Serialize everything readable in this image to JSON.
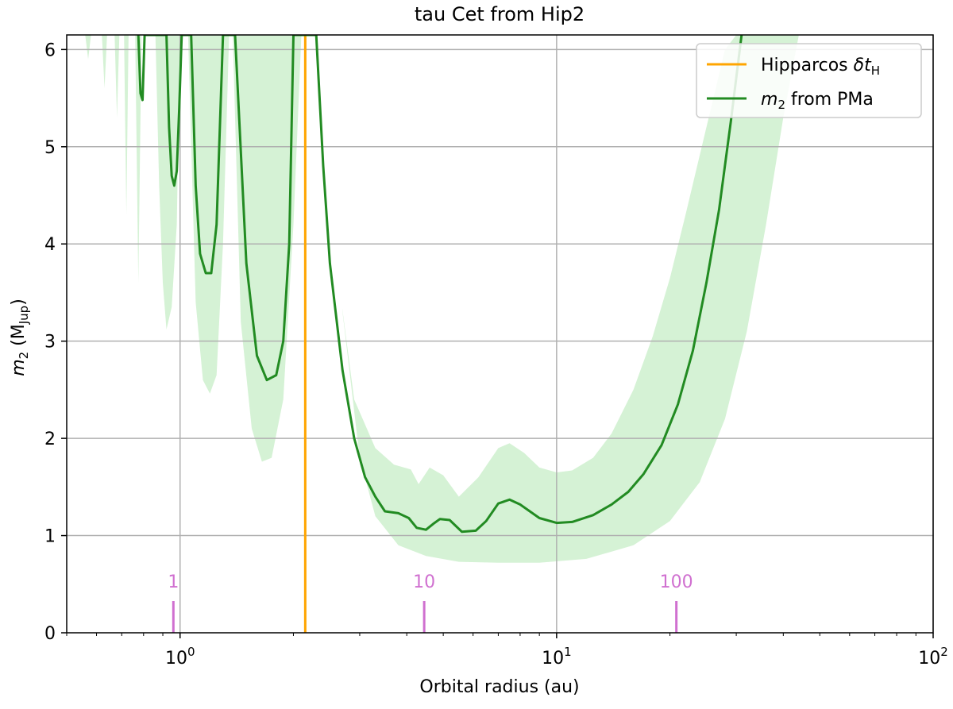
{
  "chart_data": {
    "type": "line",
    "title": "tau Cet from Hip2",
    "xlabel": "Orbital radius (au)",
    "ylabel_main": "m",
    "ylabel_sub": "2",
    "ylabel_rest": " (M",
    "ylabel_unit_sub": "Jup",
    "ylabel_close": ")",
    "xscale": "log",
    "xlim": [
      0.5,
      100
    ],
    "ylim": [
      0,
      6.15
    ],
    "grid": true,
    "x_ticks": [
      {
        "value": 1,
        "base": "10",
        "exp": "0"
      },
      {
        "value": 10,
        "base": "10",
        "exp": "1"
      },
      {
        "value": 100,
        "base": "10",
        "exp": "2"
      }
    ],
    "y_ticks": [
      "0",
      "1",
      "2",
      "3",
      "4",
      "5",
      "6"
    ],
    "legend": {
      "placement": "top-right",
      "entries": [
        {
          "label_main": "Hipparcos ",
          "label_symbol": "δt",
          "label_sub": "H",
          "color": "#ffa500"
        },
        {
          "label_main": "m",
          "label_sub": "2",
          "label_rest": " from PMa",
          "color": "#228b22"
        }
      ]
    },
    "hipparcos_line": {
      "x": 2.15,
      "color": "#ffa500"
    },
    "series": [
      {
        "name": "m2 from PMa",
        "color": "#228b22",
        "points": [
          [
            0.775,
            6.15
          ],
          [
            0.785,
            5.55
          ],
          [
            0.795,
            5.48
          ],
          [
            0.805,
            6.15
          ],
          [
            0.92,
            6.15
          ],
          [
            0.935,
            5.2
          ],
          [
            0.95,
            4.7
          ],
          [
            0.965,
            4.6
          ],
          [
            0.98,
            4.75
          ],
          [
            0.995,
            5.4
          ],
          [
            1.01,
            6.15
          ],
          [
            1.07,
            6.15
          ],
          [
            1.1,
            4.6
          ],
          [
            1.13,
            3.9
          ],
          [
            1.17,
            3.7
          ],
          [
            1.21,
            3.7
          ],
          [
            1.25,
            4.2
          ],
          [
            1.3,
            6.15
          ],
          [
            1.4,
            6.15
          ],
          [
            1.5,
            3.8
          ],
          [
            1.6,
            2.85
          ],
          [
            1.7,
            2.6
          ],
          [
            1.8,
            2.65
          ],
          [
            1.88,
            3.0
          ],
          [
            1.95,
            4.0
          ],
          [
            2.0,
            6.15
          ],
          [
            2.3,
            6.15
          ],
          [
            2.4,
            4.8
          ],
          [
            2.5,
            3.8
          ],
          [
            2.7,
            2.7
          ],
          [
            2.9,
            2.0
          ],
          [
            3.1,
            1.6
          ],
          [
            3.3,
            1.4
          ],
          [
            3.5,
            1.25
          ],
          [
            3.8,
            1.23
          ],
          [
            4.05,
            1.18
          ],
          [
            4.25,
            1.08
          ],
          [
            4.5,
            1.06
          ],
          [
            4.7,
            1.12
          ],
          [
            4.9,
            1.17
          ],
          [
            5.2,
            1.16
          ],
          [
            5.6,
            1.04
          ],
          [
            6.1,
            1.05
          ],
          [
            6.5,
            1.15
          ],
          [
            7.0,
            1.33
          ],
          [
            7.5,
            1.37
          ],
          [
            8.0,
            1.32
          ],
          [
            9.0,
            1.18
          ],
          [
            10.0,
            1.13
          ],
          [
            11.0,
            1.14
          ],
          [
            12.5,
            1.21
          ],
          [
            14.0,
            1.32
          ],
          [
            15.5,
            1.45
          ],
          [
            17.0,
            1.63
          ],
          [
            19.0,
            1.93
          ],
          [
            21.0,
            2.35
          ],
          [
            23.0,
            2.9
          ],
          [
            25.0,
            3.6
          ],
          [
            27.0,
            4.35
          ],
          [
            29.0,
            5.25
          ],
          [
            31.0,
            6.15
          ]
        ],
        "band_upper": [
          [
            0.56,
            6.15
          ],
          [
            30.0,
            6.15
          ],
          [
            36.0,
            6.15
          ],
          [
            43.0,
            6.15
          ],
          [
            47.0,
            6.15
          ]
        ],
        "band_lower": [
          [
            0.56,
            6.15
          ],
          [
            0.57,
            5.9
          ],
          [
            0.58,
            6.15
          ],
          [
            0.62,
            6.15
          ],
          [
            0.63,
            5.6
          ],
          [
            0.64,
            6.15
          ],
          [
            0.67,
            6.15
          ],
          [
            0.68,
            5.3
          ],
          [
            0.69,
            6.15
          ],
          [
            0.71,
            6.15
          ],
          [
            0.72,
            4.3
          ],
          [
            0.73,
            6.15
          ],
          [
            0.76,
            6.15
          ],
          [
            0.775,
            3.6
          ],
          [
            0.79,
            6.15
          ],
          [
            0.86,
            6.15
          ],
          [
            0.88,
            4.6
          ],
          [
            0.9,
            3.6
          ],
          [
            0.92,
            3.12
          ],
          [
            0.95,
            3.35
          ],
          [
            0.98,
            4.2
          ],
          [
            1.0,
            6.15
          ],
          [
            1.05,
            6.15
          ],
          [
            1.1,
            3.4
          ],
          [
            1.15,
            2.6
          ],
          [
            1.2,
            2.46
          ],
          [
            1.25,
            2.65
          ],
          [
            1.3,
            4.0
          ],
          [
            1.35,
            6.15
          ],
          [
            1.38,
            6.15
          ],
          [
            1.45,
            3.2
          ],
          [
            1.55,
            2.1
          ],
          [
            1.65,
            1.76
          ],
          [
            1.75,
            1.8
          ],
          [
            1.88,
            2.4
          ],
          [
            2.0,
            4.2
          ],
          [
            2.1,
            6.15
          ],
          [
            2.5,
            6.15
          ],
          [
            2.7,
            3.3
          ],
          [
            3.0,
            1.8
          ],
          [
            3.3,
            1.2
          ],
          [
            3.8,
            0.9
          ],
          [
            4.5,
            0.79
          ],
          [
            5.5,
            0.73
          ],
          [
            7.0,
            0.72
          ],
          [
            9.0,
            0.72
          ],
          [
            12.0,
            0.76
          ],
          [
            16.0,
            0.9
          ],
          [
            20.0,
            1.15
          ],
          [
            24.0,
            1.55
          ],
          [
            28.0,
            2.2
          ],
          [
            32.0,
            3.1
          ],
          [
            36.0,
            4.2
          ],
          [
            40.0,
            5.3
          ],
          [
            44.0,
            6.15
          ],
          [
            47.0,
            6.15
          ]
        ],
        "band_top_envelope": [
          [
            2.45,
            6.15
          ],
          [
            2.6,
            3.8
          ],
          [
            2.9,
            2.4
          ],
          [
            3.3,
            1.9
          ],
          [
            3.7,
            1.73
          ],
          [
            4.1,
            1.68
          ],
          [
            4.3,
            1.53
          ],
          [
            4.6,
            1.7
          ],
          [
            5.0,
            1.62
          ],
          [
            5.5,
            1.4
          ],
          [
            6.2,
            1.6
          ],
          [
            7.0,
            1.9
          ],
          [
            7.5,
            1.95
          ],
          [
            8.2,
            1.85
          ],
          [
            9.0,
            1.7
          ],
          [
            10.0,
            1.65
          ],
          [
            11.0,
            1.67
          ],
          [
            12.5,
            1.8
          ],
          [
            14.0,
            2.05
          ],
          [
            16.0,
            2.5
          ],
          [
            18.0,
            3.05
          ],
          [
            20.0,
            3.65
          ],
          [
            22.0,
            4.3
          ],
          [
            25.0,
            5.2
          ],
          [
            28.0,
            6.0
          ],
          [
            30.0,
            6.15
          ]
        ],
        "band_color": "#d5f2d5"
      }
    ],
    "period_scale": {
      "color": "#d070d0",
      "ticks": [
        {
          "label": "1",
          "x": 0.96
        },
        {
          "label": "10",
          "x": 4.45
        },
        {
          "label": "100",
          "x": 20.8
        }
      ]
    }
  }
}
